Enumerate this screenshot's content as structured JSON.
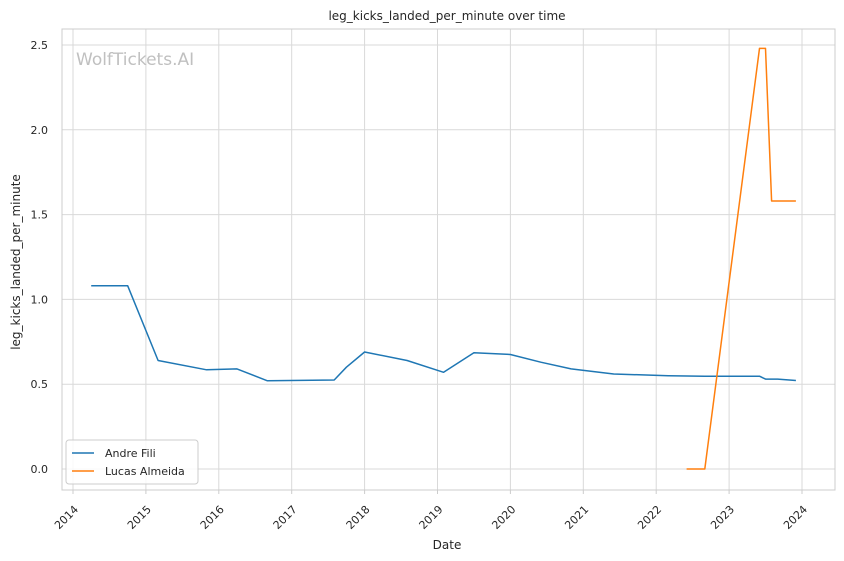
{
  "chart_data": {
    "type": "line",
    "title": "leg_kicks_landed_per_minute over time",
    "xlabel": "Date",
    "ylabel": "leg_kicks_landed_per_minute",
    "watermark": "WolfTickets.AI",
    "xlim": [
      2014.0,
      2024.4
    ],
    "ylim": [
      -0.13,
      2.6
    ],
    "x_ticks": [
      "2014",
      "2015",
      "2016",
      "2017",
      "2018",
      "2019",
      "2020",
      "2021",
      "2022",
      "2023",
      "2024"
    ],
    "y_ticks": [
      "0.0",
      "0.5",
      "1.0",
      "1.5",
      "2.0",
      "2.5"
    ],
    "grid": true,
    "legend_position": "lower-left",
    "series": [
      {
        "name": "Andre Fili",
        "color": "#1f77b4",
        "points": [
          {
            "x": "2014-04",
            "y": 1.08
          },
          {
            "x": "2014-10",
            "y": 1.08
          },
          {
            "x": "2015-03",
            "y": 0.64
          },
          {
            "x": "2015-11",
            "y": 0.585
          },
          {
            "x": "2016-04",
            "y": 0.59
          },
          {
            "x": "2016-09",
            "y": 0.52
          },
          {
            "x": "2017-08",
            "y": 0.525
          },
          {
            "x": "2017-10",
            "y": 0.6
          },
          {
            "x": "2018-01",
            "y": 0.69
          },
          {
            "x": "2018-08",
            "y": 0.64
          },
          {
            "x": "2019-02",
            "y": 0.57
          },
          {
            "x": "2019-07",
            "y": 0.685
          },
          {
            "x": "2020-01",
            "y": 0.675
          },
          {
            "x": "2020-06",
            "y": 0.63
          },
          {
            "x": "2020-11",
            "y": 0.59
          },
          {
            "x": "2021-06",
            "y": 0.56
          },
          {
            "x": "2022-03",
            "y": 0.55
          },
          {
            "x": "2022-09",
            "y": 0.547
          },
          {
            "x": "2023-06",
            "y": 0.547
          },
          {
            "x": "2023-07",
            "y": 0.53
          },
          {
            "x": "2023-09",
            "y": 0.53
          },
          {
            "x": "2023-12",
            "y": 0.522
          }
        ]
      },
      {
        "name": "Lucas Almeida",
        "color": "#ff7f0e",
        "points": [
          {
            "x": "2022-06",
            "y": 0.0
          },
          {
            "x": "2022-09",
            "y": 0.0
          },
          {
            "x": "2023-06",
            "y": 2.48
          },
          {
            "x": "2023-07",
            "y": 2.48
          },
          {
            "x": "2023-08",
            "y": 1.58
          },
          {
            "x": "2023-12",
            "y": 1.58
          }
        ]
      }
    ]
  }
}
